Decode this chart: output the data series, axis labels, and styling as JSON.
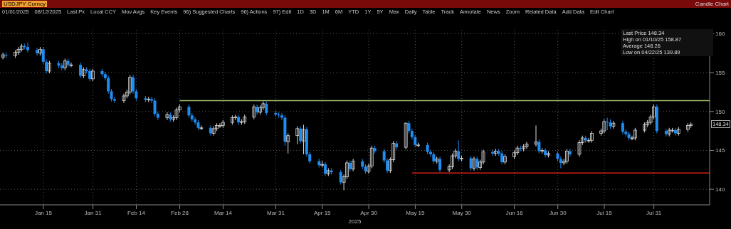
{
  "chart_data": {
    "type": "candlestick",
    "title": "USDJPY Curncy",
    "subtitle": "Candle Chart",
    "xlabel": "2025",
    "x": [
      "2025-01-02",
      "2025-01-03",
      "2025-01-06",
      "2025-01-07",
      "2025-01-08",
      "2025-01-09",
      "2025-01-10",
      "2025-01-13",
      "2025-01-14",
      "2025-01-15",
      "2025-01-16",
      "2025-01-17",
      "2025-01-20",
      "2025-01-21",
      "2025-01-22",
      "2025-01-23",
      "2025-01-24",
      "2025-01-27",
      "2025-01-28",
      "2025-01-29",
      "2025-01-30",
      "2025-01-31",
      "2025-02-03",
      "2025-02-04",
      "2025-02-05",
      "2025-02-06",
      "2025-02-07",
      "2025-02-10",
      "2025-02-11",
      "2025-02-12",
      "2025-02-13",
      "2025-02-14",
      "2025-02-17",
      "2025-02-18",
      "2025-02-19",
      "2025-02-20",
      "2025-02-21",
      "2025-02-24",
      "2025-02-25",
      "2025-02-26",
      "2025-02-27",
      "2025-02-28",
      "2025-03-03",
      "2025-03-04",
      "2025-03-05",
      "2025-03-06",
      "2025-03-07",
      "2025-03-10",
      "2025-03-11",
      "2025-03-12",
      "2025-03-13",
      "2025-03-14",
      "2025-03-17",
      "2025-03-18",
      "2025-03-19",
      "2025-03-20",
      "2025-03-21",
      "2025-03-24",
      "2025-03-25",
      "2025-03-26",
      "2025-03-27",
      "2025-03-28",
      "2025-03-31",
      "2025-04-01",
      "2025-04-02",
      "2025-04-03",
      "2025-04-04",
      "2025-04-07",
      "2025-04-08",
      "2025-04-09",
      "2025-04-10",
      "2025-04-11",
      "2025-04-14",
      "2025-04-15",
      "2025-04-16",
      "2025-04-17",
      "2025-04-18",
      "2025-04-21",
      "2025-04-22",
      "2025-04-23",
      "2025-04-24",
      "2025-04-25",
      "2025-04-28",
      "2025-04-29",
      "2025-04-30",
      "2025-05-01",
      "2025-05-02",
      "2025-05-05",
      "2025-05-06",
      "2025-05-07",
      "2025-05-08",
      "2025-05-09",
      "2025-05-12",
      "2025-05-13",
      "2025-05-14",
      "2025-05-15",
      "2025-05-16",
      "2025-05-19",
      "2025-05-20",
      "2025-05-21",
      "2025-05-22",
      "2025-05-23",
      "2025-05-26",
      "2025-05-27",
      "2025-05-28",
      "2025-05-29",
      "2025-05-30",
      "2025-06-02",
      "2025-06-03",
      "2025-06-04",
      "2025-06-05",
      "2025-06-06",
      "2025-06-09",
      "2025-06-10",
      "2025-06-11",
      "2025-06-12",
      "2025-06-13",
      "2025-06-16",
      "2025-06-17",
      "2025-06-18",
      "2025-06-19",
      "2025-06-20",
      "2025-06-23",
      "2025-06-24",
      "2025-06-25",
      "2025-06-26",
      "2025-06-27",
      "2025-06-30",
      "2025-07-01",
      "2025-07-02",
      "2025-07-03",
      "2025-07-04",
      "2025-07-07",
      "2025-07-08",
      "2025-07-09",
      "2025-07-10",
      "2025-07-11",
      "2025-07-14",
      "2025-07-15",
      "2025-07-16",
      "2025-07-17",
      "2025-07-18",
      "2025-07-21",
      "2025-07-22",
      "2025-07-23",
      "2025-07-24",
      "2025-07-25",
      "2025-07-28",
      "2025-07-29",
      "2025-07-30",
      "2025-07-31",
      "2025-08-01",
      "2025-08-04",
      "2025-08-05",
      "2025-08-06",
      "2025-08-07",
      "2025-08-08",
      "2025-08-11",
      "2025-08-12"
    ],
    "ohlc": [
      [
        157.0,
        157.6,
        156.7,
        157.3
      ],
      [
        157.3,
        157.6,
        156.9,
        157.2
      ],
      [
        157.2,
        157.9,
        156.9,
        157.6
      ],
      [
        157.6,
        158.3,
        157.3,
        158.0
      ],
      [
        158.0,
        158.7,
        157.7,
        158.4
      ],
      [
        158.4,
        158.7,
        158.0,
        158.3
      ],
      [
        158.3,
        158.87,
        157.6,
        157.9
      ],
      [
        157.9,
        158.2,
        157.2,
        157.5
      ],
      [
        157.5,
        158.3,
        157.2,
        158.0
      ],
      [
        158.0,
        158.3,
        156.1,
        156.4
      ],
      [
        156.4,
        156.7,
        154.9,
        155.2
      ],
      [
        155.2,
        156.5,
        154.9,
        156.2
      ],
      [
        156.2,
        156.5,
        155.6,
        155.9
      ],
      [
        155.9,
        156.2,
        155.3,
        155.6
      ],
      [
        155.6,
        156.8,
        155.3,
        156.5
      ],
      [
        156.5,
        156.8,
        155.7,
        156.0
      ],
      [
        156.0,
        156.3,
        155.7,
        156.0
      ],
      [
        156.0,
        156.3,
        154.3,
        154.6
      ],
      [
        154.6,
        155.7,
        154.3,
        155.4
      ],
      [
        155.4,
        155.7,
        154.9,
        155.2
      ],
      [
        155.2,
        155.5,
        153.9,
        154.2
      ],
      [
        154.2,
        155.5,
        153.9,
        155.2
      ],
      [
        155.2,
        155.5,
        154.5,
        154.8
      ],
      [
        154.8,
        155.1,
        154.0,
        154.3
      ],
      [
        154.3,
        154.6,
        152.3,
        152.6
      ],
      [
        152.6,
        152.9,
        151.3,
        151.6
      ],
      [
        151.6,
        151.9,
        151.1,
        151.4
      ],
      [
        151.4,
        152.3,
        151.1,
        152.0
      ],
      [
        152.0,
        152.8,
        151.7,
        152.5
      ],
      [
        152.5,
        154.7,
        152.2,
        154.4
      ],
      [
        154.4,
        154.7,
        152.3,
        152.6
      ],
      [
        152.6,
        152.9,
        151.4,
        151.7
      ],
      [
        151.7,
        152.0,
        151.2,
        151.5
      ],
      [
        151.5,
        151.9,
        151.2,
        151.6
      ],
      [
        151.6,
        151.9,
        151.1,
        151.4
      ],
      [
        151.4,
        151.7,
        149.4,
        149.7
      ],
      [
        149.7,
        150.0,
        148.9,
        149.2
      ],
      [
        149.2,
        149.9,
        148.9,
        149.6
      ],
      [
        149.6,
        149.9,
        148.7,
        149.0
      ],
      [
        149.0,
        149.5,
        148.7,
        149.2
      ],
      [
        149.2,
        150.5,
        148.9,
        150.2
      ],
      [
        150.2,
        150.9,
        149.9,
        150.6
      ],
      [
        150.6,
        150.9,
        149.2,
        149.5
      ],
      [
        149.5,
        149.8,
        148.7,
        149.0
      ],
      [
        149.0,
        149.3,
        148.3,
        148.6
      ],
      [
        148.6,
        148.9,
        147.6,
        147.9
      ],
      [
        147.9,
        148.2,
        147.6,
        147.9
      ],
      [
        147.9,
        148.2,
        146.9,
        147.2
      ],
      [
        147.2,
        148.1,
        146.9,
        147.8
      ],
      [
        147.8,
        148.5,
        147.5,
        148.2
      ],
      [
        148.2,
        148.5,
        147.9,
        148.2
      ],
      [
        148.2,
        148.9,
        147.9,
        148.6
      ],
      [
        148.6,
        149.5,
        148.3,
        149.2
      ],
      [
        149.2,
        149.6,
        148.9,
        149.3
      ],
      [
        149.3,
        149.6,
        148.3,
        148.6
      ],
      [
        148.6,
        149.0,
        148.3,
        148.7
      ],
      [
        148.7,
        149.6,
        148.4,
        149.3
      ],
      [
        149.3,
        150.9,
        149.0,
        150.6
      ],
      [
        150.6,
        150.9,
        149.6,
        149.9
      ],
      [
        149.9,
        150.8,
        149.6,
        150.5
      ],
      [
        150.5,
        151.3,
        150.2,
        151.0
      ],
      [
        151.0,
        151.3,
        149.5,
        149.8
      ],
      [
        149.8,
        150.1,
        149.3,
        149.6
      ],
      [
        149.6,
        149.9,
        149.2,
        149.5
      ],
      [
        149.5,
        149.8,
        148.9,
        149.2
      ],
      [
        149.2,
        149.5,
        145.6,
        146.1
      ],
      [
        146.1,
        147.2,
        144.6,
        146.9
      ],
      [
        146.9,
        148.1,
        145.8,
        147.8
      ],
      [
        147.8,
        148.1,
        145.9,
        146.2
      ],
      [
        146.2,
        148.3,
        144.5,
        147.7
      ],
      [
        147.7,
        148.0,
        144.2,
        144.5
      ],
      [
        144.5,
        144.8,
        143.3,
        143.6
      ],
      [
        143.6,
        143.9,
        142.8,
        143.1
      ],
      [
        143.1,
        143.7,
        142.8,
        143.2
      ],
      [
        143.2,
        143.5,
        141.7,
        142.0
      ],
      [
        142.0,
        142.7,
        141.7,
        142.4
      ],
      [
        142.4,
        142.7,
        141.9,
        142.2
      ],
      [
        142.2,
        142.5,
        140.6,
        140.9
      ],
      [
        140.9,
        141.9,
        139.89,
        141.6
      ],
      [
        141.6,
        143.7,
        141.3,
        143.4
      ],
      [
        143.4,
        143.7,
        142.3,
        142.6
      ],
      [
        142.6,
        143.9,
        142.3,
        143.6
      ],
      [
        143.6,
        143.9,
        142.6,
        142.9
      ],
      [
        142.9,
        143.2,
        142.0,
        142.3
      ],
      [
        142.3,
        143.3,
        142.0,
        143.0
      ],
      [
        143.0,
        145.6,
        142.7,
        145.3
      ],
      [
        145.3,
        145.6,
        144.6,
        144.9
      ],
      [
        144.9,
        145.2,
        143.4,
        143.7
      ],
      [
        143.7,
        144.0,
        142.1,
        142.4
      ],
      [
        142.4,
        144.1,
        142.1,
        143.8
      ],
      [
        143.8,
        146.2,
        143.5,
        145.9
      ],
      [
        145.9,
        146.2,
        145.1,
        145.4
      ],
      [
        145.4,
        148.6,
        145.1,
        148.5
      ],
      [
        148.5,
        148.8,
        147.2,
        147.5
      ],
      [
        147.5,
        147.8,
        146.4,
        146.7
      ],
      [
        146.7,
        147.0,
        145.4,
        145.7
      ],
      [
        145.7,
        146.0,
        145.4,
        145.7
      ],
      [
        145.7,
        146.0,
        144.5,
        144.8
      ],
      [
        144.8,
        145.1,
        144.2,
        144.5
      ],
      [
        144.5,
        144.8,
        143.3,
        143.6
      ],
      [
        143.6,
        144.2,
        143.3,
        143.9
      ],
      [
        143.9,
        144.2,
        142.2,
        142.5
      ],
      [
        142.5,
        143.2,
        142.2,
        142.9
      ],
      [
        142.9,
        144.6,
        142.6,
        144.3
      ],
      [
        144.3,
        145.2,
        144.0,
        144.9
      ],
      [
        144.9,
        146.3,
        143.6,
        143.9
      ],
      [
        143.9,
        144.3,
        143.6,
        144.0
      ],
      [
        144.0,
        144.3,
        142.4,
        142.7
      ],
      [
        142.7,
        144.2,
        142.4,
        143.9
      ],
      [
        143.9,
        144.2,
        142.5,
        142.8
      ],
      [
        142.8,
        143.8,
        142.5,
        143.5
      ],
      [
        143.5,
        145.1,
        143.2,
        144.8
      ],
      [
        144.8,
        145.1,
        144.3,
        144.6
      ],
      [
        144.6,
        145.2,
        144.3,
        144.9
      ],
      [
        144.9,
        145.2,
        144.3,
        144.6
      ],
      [
        144.6,
        144.9,
        143.2,
        143.5
      ],
      [
        143.5,
        144.5,
        143.2,
        144.2
      ],
      [
        144.2,
        145.0,
        143.9,
        144.7
      ],
      [
        144.7,
        145.6,
        144.4,
        145.3
      ],
      [
        145.3,
        145.6,
        144.9,
        145.2
      ],
      [
        145.2,
        145.8,
        144.9,
        145.5
      ],
      [
        145.5,
        146.1,
        145.2,
        145.8
      ],
      [
        145.8,
        148.2,
        145.5,
        146.1
      ],
      [
        146.1,
        146.4,
        144.6,
        144.9
      ],
      [
        144.9,
        145.3,
        144.6,
        145.0
      ],
      [
        145.0,
        145.3,
        144.1,
        144.4
      ],
      [
        144.4,
        144.9,
        144.1,
        144.6
      ],
      [
        144.6,
        144.9,
        143.6,
        143.9
      ],
      [
        143.9,
        144.2,
        142.7,
        143.4
      ],
      [
        143.4,
        143.9,
        143.1,
        143.6
      ],
      [
        143.6,
        145.2,
        143.3,
        144.9
      ],
      [
        144.9,
        145.2,
        144.2,
        144.5
      ],
      [
        144.5,
        146.3,
        144.2,
        146.0
      ],
      [
        146.0,
        146.9,
        145.7,
        146.6
      ],
      [
        146.6,
        146.9,
        146.0,
        146.3
      ],
      [
        146.3,
        146.6,
        146.0,
        146.3
      ],
      [
        146.3,
        147.5,
        146.0,
        147.2
      ],
      [
        147.2,
        147.8,
        146.9,
        147.5
      ],
      [
        147.5,
        149.0,
        147.2,
        148.7
      ],
      [
        148.7,
        149.2,
        147.6,
        148.6
      ],
      [
        148.6,
        149.0,
        147.8,
        148.1
      ],
      [
        148.1,
        148.8,
        147.8,
        148.5
      ],
      [
        148.5,
        148.8,
        147.1,
        147.4
      ],
      [
        147.4,
        147.7,
        146.8,
        147.1
      ],
      [
        147.1,
        147.4,
        146.3,
        146.6
      ],
      [
        146.6,
        146.9,
        146.3,
        146.6
      ],
      [
        146.6,
        147.9,
        146.3,
        147.6
      ],
      [
        147.6,
        148.6,
        147.3,
        148.3
      ],
      [
        148.3,
        148.9,
        148.0,
        148.6
      ],
      [
        148.6,
        149.6,
        148.3,
        149.3
      ],
      [
        149.3,
        150.9,
        149.0,
        150.6
      ],
      [
        150.6,
        150.9,
        147.2,
        147.5
      ],
      [
        147.5,
        147.8,
        146.8,
        147.1
      ],
      [
        147.1,
        147.9,
        146.8,
        147.6
      ],
      [
        147.6,
        147.9,
        147.3,
        147.6
      ],
      [
        147.6,
        147.9,
        146.9,
        147.2
      ],
      [
        147.2,
        148.0,
        146.9,
        147.7
      ],
      [
        147.7,
        148.5,
        147.4,
        148.2
      ],
      [
        148.2,
        148.6,
        147.9,
        148.34
      ]
    ],
    "colors": [
      "#d8d8d8",
      "#1e8cf0",
      "#d8d8d8",
      "#d8d8d8",
      "#d8d8d8",
      "#1e8cf0",
      "#1e8cf0",
      "#1e8cf0",
      "#d8d8d8",
      "#1e8cf0",
      "#1e8cf0",
      "#d8d8d8",
      "#1e8cf0",
      "#1e8cf0",
      "#d8d8d8",
      "#1e8cf0",
      "#d8d8d8",
      "#1e8cf0",
      "#d8d8d8",
      "#1e8cf0",
      "#1e8cf0",
      "#d8d8d8",
      "#1e8cf0",
      "#1e8cf0",
      "#1e8cf0",
      "#1e8cf0",
      "#1e8cf0",
      "#d8d8d8",
      "#d8d8d8",
      "#d8d8d8",
      "#1e8cf0",
      "#1e8cf0",
      "#1e8cf0",
      "#d8d8d8",
      "#1e8cf0",
      "#1e8cf0",
      "#1e8cf0",
      "#d8d8d8",
      "#1e8cf0",
      "#d8d8d8",
      "#d8d8d8",
      "#d8d8d8",
      "#1e8cf0",
      "#1e8cf0",
      "#1e8cf0",
      "#1e8cf0",
      "#d8d8d8",
      "#1e8cf0",
      "#d8d8d8",
      "#d8d8d8",
      "#d8d8d8",
      "#d8d8d8",
      "#d8d8d8",
      "#d8d8d8",
      "#1e8cf0",
      "#d8d8d8",
      "#d8d8d8",
      "#d8d8d8",
      "#1e8cf0",
      "#d8d8d8",
      "#d8d8d8",
      "#1e8cf0",
      "#1e8cf0",
      "#1e8cf0",
      "#1e8cf0",
      "#1e8cf0",
      "#d8d8d8",
      "#d8d8d8",
      "#1e8cf0",
      "#d8d8d8",
      "#1e8cf0",
      "#1e8cf0",
      "#1e8cf0",
      "#d8d8d8",
      "#1e8cf0",
      "#d8d8d8",
      "#1e8cf0",
      "#1e8cf0",
      "#d8d8d8",
      "#d8d8d8",
      "#1e8cf0",
      "#d8d8d8",
      "#1e8cf0",
      "#1e8cf0",
      "#d8d8d8",
      "#d8d8d8",
      "#1e8cf0",
      "#1e8cf0",
      "#1e8cf0",
      "#d8d8d8",
      "#d8d8d8",
      "#1e8cf0",
      "#d8d8d8",
      "#1e8cf0",
      "#1e8cf0",
      "#1e8cf0",
      "#d8d8d8",
      "#1e8cf0",
      "#1e8cf0",
      "#1e8cf0",
      "#d8d8d8",
      "#1e8cf0",
      "#d8d8d8",
      "#d8d8d8",
      "#d8d8d8",
      "#1e8cf0",
      "#d8d8d8",
      "#1e8cf0",
      "#d8d8d8",
      "#1e8cf0",
      "#d8d8d8",
      "#d8d8d8",
      "#1e8cf0",
      "#d8d8d8",
      "#1e8cf0",
      "#1e8cf0",
      "#d8d8d8",
      "#d8d8d8",
      "#d8d8d8",
      "#1e8cf0",
      "#d8d8d8",
      "#d8d8d8",
      "#d8d8d8",
      "#1e8cf0",
      "#d8d8d8",
      "#1e8cf0",
      "#d8d8d8",
      "#1e8cf0",
      "#1e8cf0",
      "#d8d8d8",
      "#d8d8d8",
      "#1e8cf0",
      "#d8d8d8",
      "#d8d8d8",
      "#1e8cf0",
      "#d8d8d8",
      "#d8d8d8",
      "#d8d8d8",
      "#d8d8d8",
      "#1e8cf0",
      "#1e8cf0",
      "#d8d8d8",
      "#1e8cf0",
      "#1e8cf0",
      "#1e8cf0",
      "#d8d8d8",
      "#d8d8d8",
      "#d8d8d8",
      "#d8d8d8",
      "#d8d8d8",
      "#d8d8d8",
      "#1e8cf0",
      "#1e8cf0",
      "#d8d8d8",
      "#d8d8d8",
      "#1e8cf0",
      "#d8d8d8",
      "#d8d8d8",
      "#d8d8d8"
    ],
    "series": [
      {
        "type": "line",
        "x": [
          "2025-02-28",
          "2025-08-18"
        ],
        "values": [
          151.4,
          151.4
        ],
        "color": "#a4c46c"
      },
      {
        "type": "line",
        "x": [
          "2025-05-14",
          "2025-08-18"
        ],
        "values": [
          142.1,
          142.1
        ],
        "color": "#e0201a"
      }
    ],
    "xlim": [
      "2025-01-01",
      "2025-08-18"
    ],
    "xticks": [
      {
        "value": "2025-01-15",
        "label": "Jan 15"
      },
      {
        "value": "2025-01-31",
        "label": "Jan 31"
      },
      {
        "value": "2025-02-14",
        "label": "Feb 14"
      },
      {
        "value": "2025-02-28",
        "label": "Feb 28"
      },
      {
        "value": "2025-03-14",
        "label": "Mar 14"
      },
      {
        "value": "2025-03-31",
        "label": "Mar 31"
      },
      {
        "value": "2025-04-15",
        "label": "Apr 15"
      },
      {
        "value": "2025-04-30",
        "label": "Apr 30"
      },
      {
        "value": "2025-05-15",
        "label": "May 15"
      },
      {
        "value": "2025-05-30",
        "label": "May 30"
      },
      {
        "value": "2025-06-16",
        "label": "Jun 16"
      },
      {
        "value": "2025-06-30",
        "label": "Jun 30"
      },
      {
        "value": "2025-07-15",
        "label": "Jul 15"
      },
      {
        "value": "2025-07-31",
        "label": "Jul 31"
      }
    ],
    "ylim": [
      138,
      160.5
    ],
    "yticks": [
      140,
      145,
      150,
      155,
      160
    ],
    "grid": true,
    "annotations": [
      "01/01/2025",
      "08/12/2025",
      "Last Px",
      "Local CCY",
      "Mov Avgs",
      "Key Events",
      "96) Suggested Charts",
      "96) Actions",
      "97) Edit",
      "1D",
      "3D",
      "1M",
      "6M",
      "YTD",
      "1Y",
      "5Y",
      "Max",
      "Daily",
      "Table",
      "Track",
      "Annotate",
      "News",
      "Zoom",
      "Related Data",
      "Add Data",
      "Edit Chart",
      "Last Price 148.34",
      "High on 01/10/25 158.87",
      "Average 148.26",
      "Low on 04/22/25 139.89",
      "148.34"
    ]
  }
}
